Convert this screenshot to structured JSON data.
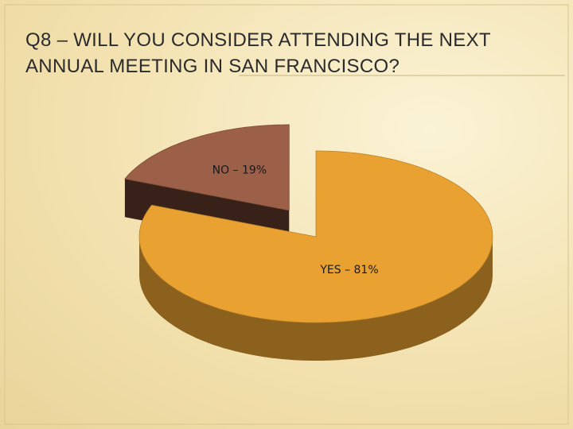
{
  "chart_data": {
    "type": "pie",
    "title": "Q8 – WILL YOU CONSIDER ATTENDING THE NEXT ANNUAL MEETING IN SAN FRANCISCO?",
    "labels": [
      "NO – 19%",
      "YES – 81%"
    ],
    "values": [
      19,
      81
    ],
    "colors": [
      "#9c5f48",
      "#e9a232"
    ]
  }
}
